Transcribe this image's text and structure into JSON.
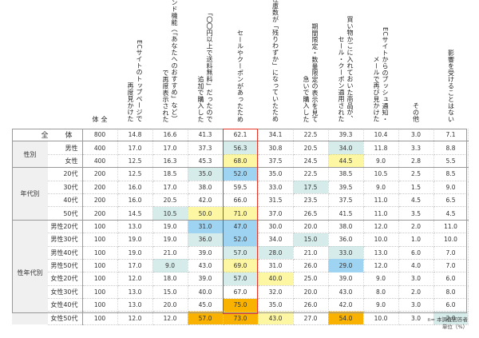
{
  "columns": [
    {
      "label": "全\n体"
    },
    {
      "label": "ECサイトのトップページで\n再度見かけた"
    },
    {
      "label": "レコメンド機能（「あなたへのおすすめ」など）\nで再度表示された"
    },
    {
      "label": "「〇〇円以上で送料無料」だったので\n追加で購入した"
    },
    {
      "label": "セールやクーポンがあったため"
    },
    {
      "label": "在庫数が「残りわずか」になっていたため"
    },
    {
      "label": "期間限定・数量限定の表示を見て\n急いで購入した"
    },
    {
      "label": "買い物かごに入れておいた商品が、\nセール・クーポン適用された"
    },
    {
      "label": "ECサイトからのプッシュ通知・\nメールで再び見かけた"
    },
    {
      "label": "その他"
    },
    {
      "label": "影響を受けることはない"
    }
  ],
  "rows": [
    {
      "group": "",
      "label": "全　体",
      "n": "800",
      "values": [
        "14.8",
        "16.6",
        "41.3",
        "62.1",
        "34.1",
        "22.5",
        "39.3",
        "10.4",
        "3.0",
        "7.1"
      ],
      "colors": [
        "",
        "",
        "",
        "",
        "",
        "",
        "",
        "",
        "",
        ""
      ]
    },
    {
      "group": "性別",
      "label": "男性",
      "n": "400",
      "values": [
        "17.0",
        "17.0",
        "37.3",
        "56.3",
        "30.8",
        "20.5",
        "34.0",
        "11.8",
        "3.3",
        "8.8"
      ],
      "colors": [
        "",
        "",
        "",
        "lb",
        "",
        "",
        "lb",
        "",
        "",
        ""
      ]
    },
    {
      "group": "",
      "label": "女性",
      "n": "400",
      "values": [
        "12.5",
        "16.3",
        "45.3",
        "68.0",
        "37.5",
        "24.5",
        "44.5",
        "9.0",
        "2.8",
        "5.5"
      ],
      "colors": [
        "",
        "",
        "",
        "ly",
        "",
        "",
        "ly",
        "",
        "",
        ""
      ]
    },
    {
      "group": "年代別",
      "label": "20代",
      "n": "200",
      "values": [
        "12.5",
        "18.5",
        "35.0",
        "52.0",
        "35.0",
        "22.5",
        "38.5",
        "10.5",
        "2.5",
        "8.5"
      ],
      "colors": [
        "",
        "",
        "lb",
        "db",
        "",
        "",
        "",
        "",
        "",
        ""
      ]
    },
    {
      "group": "",
      "label": "30代",
      "n": "200",
      "values": [
        "16.0",
        "17.0",
        "38.0",
        "59.5",
        "33.0",
        "17.5",
        "39.5",
        "9.0",
        "1.5",
        "9.0"
      ],
      "colors": [
        "",
        "",
        "",
        "",
        "",
        "lb",
        "",
        "",
        "",
        ""
      ]
    },
    {
      "group": "",
      "label": "40代",
      "n": "200",
      "values": [
        "16.0",
        "20.5",
        "42.0",
        "66.0",
        "31.5",
        "23.5",
        "37.5",
        "11.0",
        "4.5",
        "6.5"
      ],
      "colors": [
        "",
        "",
        "",
        "",
        "",
        "",
        "",
        "",
        "",
        ""
      ]
    },
    {
      "group": "",
      "label": "50代",
      "n": "200",
      "values": [
        "14.5",
        "10.5",
        "50.0",
        "71.0",
        "37.0",
        "26.5",
        "41.5",
        "11.0",
        "3.5",
        "4.5"
      ],
      "colors": [
        "",
        "lb",
        "ly",
        "ly",
        "",
        "",
        "",
        "",
        "",
        ""
      ]
    },
    {
      "group": "性年代別",
      "label": "男性20代",
      "n": "100",
      "values": [
        "13.0",
        "19.0",
        "31.0",
        "47.0",
        "30.0",
        "20.0",
        "38.0",
        "12.0",
        "2.0",
        "11.0"
      ],
      "colors": [
        "",
        "",
        "db",
        "db",
        "",
        "",
        "",
        "",
        "",
        ""
      ]
    },
    {
      "group": "",
      "label": "男性30代",
      "n": "100",
      "values": [
        "19.0",
        "19.0",
        "36.0",
        "52.0",
        "34.0",
        "15.0",
        "36.0",
        "10.0",
        "1.0",
        "10.0"
      ],
      "colors": [
        "",
        "",
        "lb",
        "db",
        "",
        "lb",
        "",
        "",
        "",
        ""
      ]
    },
    {
      "group": "",
      "label": "男性40代",
      "n": "100",
      "values": [
        "19.0",
        "21.0",
        "39.0",
        "57.0",
        "28.0",
        "21.0",
        "33.0",
        "13.0",
        "6.0",
        "7.0"
      ],
      "colors": [
        "",
        "",
        "",
        "lb",
        "lb",
        "",
        "lb",
        "",
        "",
        ""
      ]
    },
    {
      "group": "",
      "label": "男性50代",
      "n": "100",
      "values": [
        "17.0",
        "9.0",
        "43.0",
        "69.0",
        "31.0",
        "26.0",
        "29.0",
        "12.0",
        "4.0",
        "7.0"
      ],
      "colors": [
        "",
        "lb",
        "",
        "ly",
        "",
        "",
        "db",
        "",
        "",
        ""
      ]
    },
    {
      "group": "",
      "label": "女性20代",
      "n": "100",
      "values": [
        "12.0",
        "18.0",
        "39.0",
        "57.0",
        "40.0",
        "25.0",
        "39.0",
        "9.0",
        "3.0",
        "6.0"
      ],
      "colors": [
        "",
        "",
        "",
        "lb",
        "ly",
        "",
        "",
        "",
        "",
        ""
      ]
    },
    {
      "group": "",
      "label": "女性30代",
      "n": "100",
      "values": [
        "13.0",
        "15.0",
        "40.0",
        "67.0",
        "32.0",
        "20.0",
        "43.0",
        "8.0",
        "2.0",
        "8.0"
      ],
      "colors": [
        "",
        "",
        "",
        "",
        "",
        "",
        "",
        "",
        "",
        ""
      ]
    },
    {
      "group": "",
      "label": "女性40代",
      "n": "100",
      "values": [
        "13.0",
        "20.0",
        "45.0",
        "75.0",
        "35.0",
        "26.0",
        "42.0",
        "9.0",
        "3.0",
        "6.0"
      ],
      "colors": [
        "",
        "",
        "",
        "or",
        "",
        "",
        "",
        "",
        "",
        ""
      ]
    },
    {
      "group": "",
      "label": "女性50代",
      "n": "100",
      "values": [
        "12.0",
        "12.0",
        "57.0",
        "73.0",
        "43.0",
        "27.0",
        "54.0",
        "10.0",
        "3.0",
        "2.0"
      ],
      "colors": [
        "",
        "",
        "or",
        "or",
        "ly",
        "",
        "or",
        "",
        "",
        "lb"
      ]
    }
  ],
  "group_spans": {
    "性別": 2,
    "年代別": 4,
    "性年代別": 8
  },
  "highlight_column": 4,
  "legend_colors": {
    "lb": "#d5ecea",
    "db": "#9fd3f2",
    "ly": "#fdf6a3",
    "or": "#f9b200",
    "highlight_border": "#e2382b"
  },
  "footer": {
    "line1": "n= 本調査回答者",
    "line2": "単位（%）"
  },
  "chart_data": {
    "type": "table",
    "title": "",
    "unit": "%",
    "categories": [
      "ECサイトのトップページで再度見かけた",
      "レコメンド機能（「あなたへのおすすめ」など）で再度表示された",
      "「〇〇円以上で送料無料」だったので追加で購入した",
      "セールやクーポンがあったため",
      "在庫数が「残りわずか」になっていたため",
      "期間限定・数量限定の表示を見て急いで購入した",
      "買い物かごに入れておいた商品が、セール・クーポン適用された",
      "ECサイトからのプッシュ通知・メールで再び見かけた",
      "その他",
      "影響を受けることはない"
    ],
    "series": [
      {
        "name": "全体",
        "n": 800,
        "values": [
          14.8,
          16.6,
          41.3,
          62.1,
          34.1,
          22.5,
          39.3,
          10.4,
          3.0,
          7.1
        ]
      },
      {
        "name": "男性",
        "n": 400,
        "values": [
          17.0,
          17.0,
          37.3,
          56.3,
          30.8,
          20.5,
          34.0,
          11.8,
          3.3,
          8.8
        ]
      },
      {
        "name": "女性",
        "n": 400,
        "values": [
          12.5,
          16.3,
          45.3,
          68.0,
          37.5,
          24.5,
          44.5,
          9.0,
          2.8,
          5.5
        ]
      },
      {
        "name": "20代",
        "n": 200,
        "values": [
          12.5,
          18.5,
          35.0,
          52.0,
          35.0,
          22.5,
          38.5,
          10.5,
          2.5,
          8.5
        ]
      },
      {
        "name": "30代",
        "n": 200,
        "values": [
          16.0,
          17.0,
          38.0,
          59.5,
          33.0,
          17.5,
          39.5,
          9.0,
          1.5,
          9.0
        ]
      },
      {
        "name": "40代",
        "n": 200,
        "values": [
          16.0,
          20.5,
          42.0,
          66.0,
          31.5,
          23.5,
          37.5,
          11.0,
          4.5,
          6.5
        ]
      },
      {
        "name": "50代",
        "n": 200,
        "values": [
          14.5,
          10.5,
          50.0,
          71.0,
          37.0,
          26.5,
          41.5,
          11.0,
          3.5,
          4.5
        ]
      },
      {
        "name": "男性20代",
        "n": 100,
        "values": [
          13.0,
          19.0,
          31.0,
          47.0,
          30.0,
          20.0,
          38.0,
          12.0,
          2.0,
          11.0
        ]
      },
      {
        "name": "男性30代",
        "n": 100,
        "values": [
          19.0,
          19.0,
          36.0,
          52.0,
          34.0,
          15.0,
          36.0,
          10.0,
          1.0,
          10.0
        ]
      },
      {
        "name": "男性40代",
        "n": 100,
        "values": [
          19.0,
          21.0,
          39.0,
          57.0,
          28.0,
          21.0,
          33.0,
          13.0,
          6.0,
          7.0
        ]
      },
      {
        "name": "男性50代",
        "n": 100,
        "values": [
          17.0,
          9.0,
          43.0,
          69.0,
          31.0,
          26.0,
          29.0,
          12.0,
          4.0,
          7.0
        ]
      },
      {
        "name": "女性20代",
        "n": 100,
        "values": [
          12.0,
          18.0,
          39.0,
          57.0,
          40.0,
          25.0,
          39.0,
          9.0,
          3.0,
          6.0
        ]
      },
      {
        "name": "女性30代",
        "n": 100,
        "values": [
          13.0,
          15.0,
          40.0,
          67.0,
          32.0,
          20.0,
          43.0,
          8.0,
          2.0,
          8.0
        ]
      },
      {
        "name": "女性40代",
        "n": 100,
        "values": [
          13.0,
          20.0,
          45.0,
          75.0,
          35.0,
          26.0,
          42.0,
          9.0,
          3.0,
          6.0
        ]
      },
      {
        "name": "女性50代",
        "n": 100,
        "values": [
          12.0,
          12.0,
          57.0,
          73.0,
          43.0,
          27.0,
          54.0,
          10.0,
          3.0,
          2.0
        ]
      }
    ],
    "groups": {
      "性別": [
        "男性",
        "女性"
      ],
      "年代別": [
        "20代",
        "30代",
        "40代",
        "50代"
      ],
      "性年代別": [
        "男性20代",
        "男性30代",
        "男性40代",
        "男性50代",
        "女性20代",
        "女性30代",
        "女性40代",
        "女性50代"
      ]
    },
    "notes": [
      "n= 本調査回答者",
      "単位（%）"
    ]
  }
}
